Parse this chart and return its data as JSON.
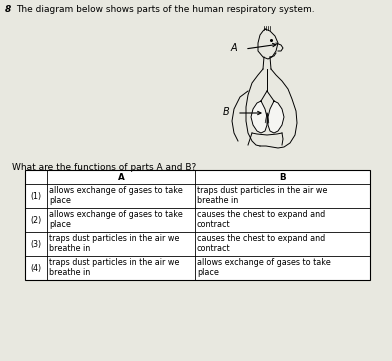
{
  "question_number": "8",
  "question_text": "The diagram below shows parts of the human respiratory system.",
  "sub_question": "What are the functions of parts A and B?",
  "bg_color": "#e8e8e0",
  "table_rows": [
    [
      "(1)",
      "allows exchange of gases to take\nplace",
      "traps dust particles in the air we\nbreathe in"
    ],
    [
      "(2)",
      "allows exchange of gases to take\nplace",
      "causes the chest to expand and\ncontract"
    ],
    [
      "(3)",
      "traps dust particles in the air we\nbreathe in",
      "causes the chest to expand and\ncontract"
    ],
    [
      "(4)",
      "traps dust particles in the air we\nbreathe in",
      "allows exchange of gases to take\nplace"
    ]
  ],
  "font_size_q": 6.5,
  "font_size_table": 5.8
}
